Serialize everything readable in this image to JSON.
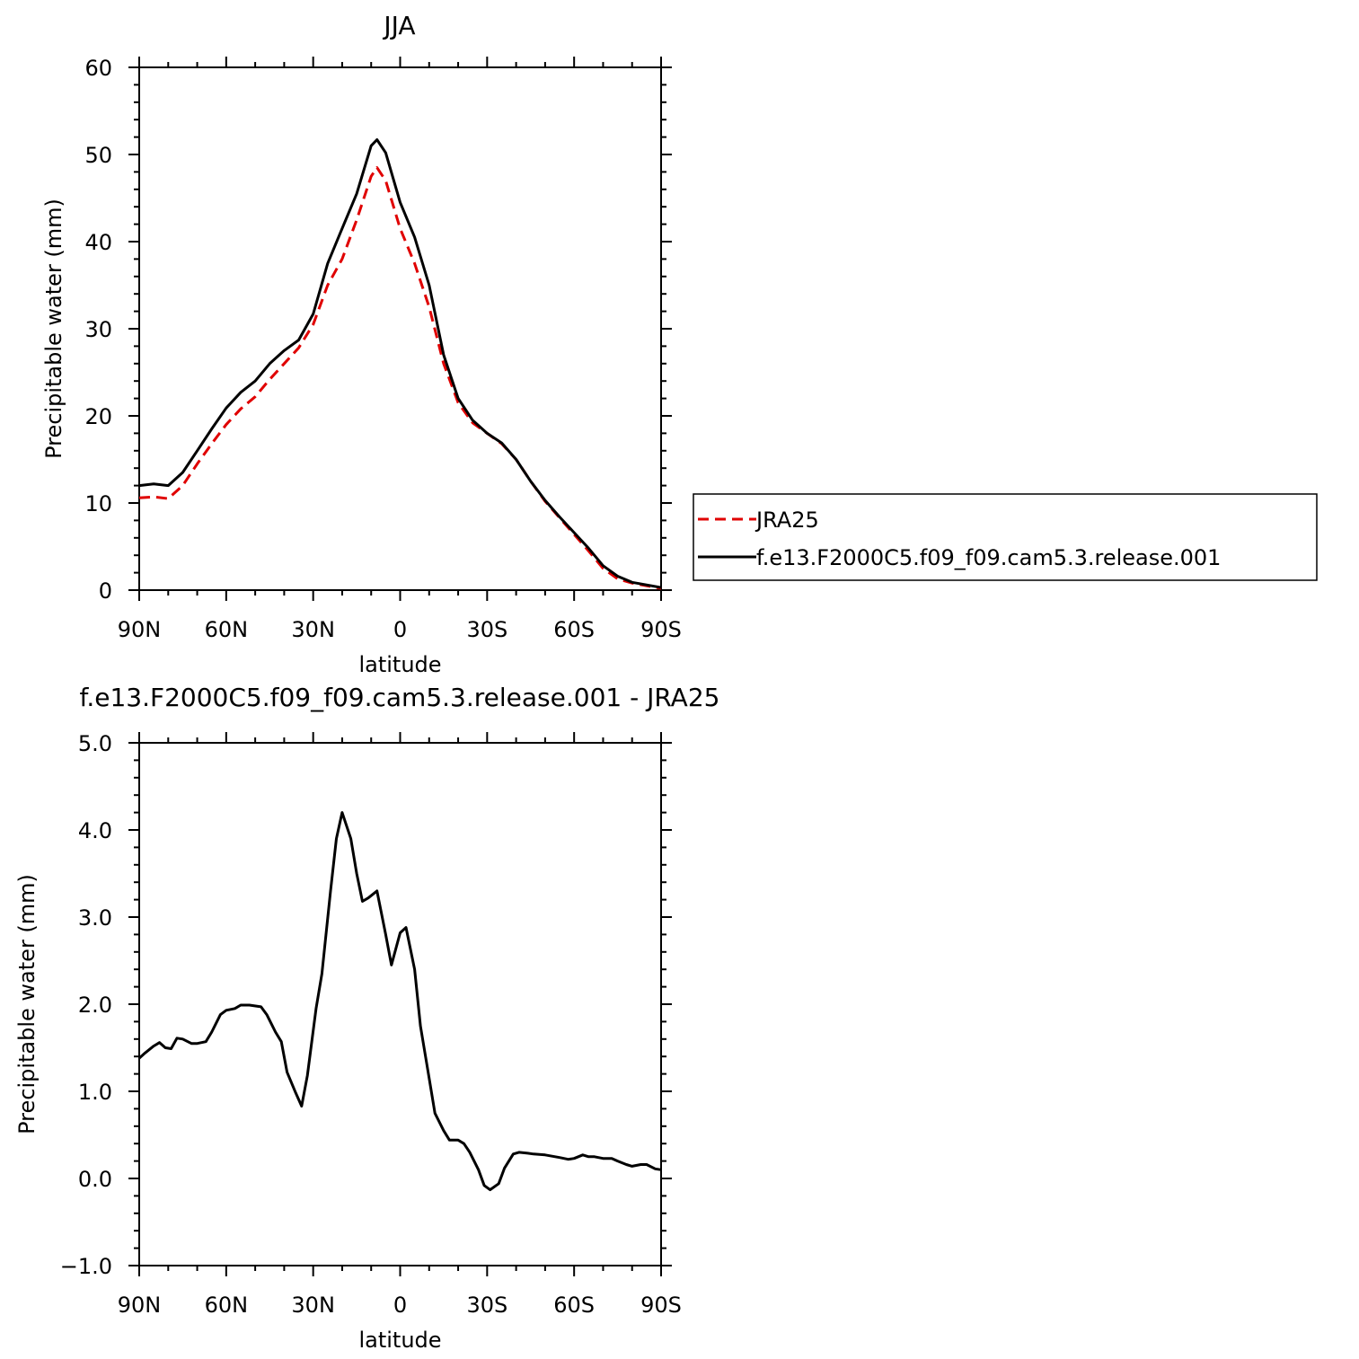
{
  "chart_data": [
    {
      "type": "line",
      "title": "JJA",
      "xlabel": "latitude",
      "ylabel": "Precipitable water (mm)",
      "xlim": [
        90,
        -90
      ],
      "ylim": [
        0,
        60
      ],
      "x_ticks": [
        90,
        60,
        30,
        0,
        -30,
        -60,
        -90
      ],
      "x_tick_labels": [
        "90N",
        "60N",
        "30N",
        "0",
        "30S",
        "60S",
        "90S"
      ],
      "y_ticks": [
        0,
        10,
        20,
        30,
        40,
        50,
        60
      ],
      "y_tick_labels": [
        "0",
        "10",
        "20",
        "30",
        "40",
        "50",
        "60"
      ],
      "legend_position": "right",
      "series": [
        {
          "name": "JRA25",
          "color": "#e00000",
          "dash": "dashed",
          "x": [
            90,
            85,
            80,
            75,
            70,
            65,
            60,
            55,
            50,
            45,
            40,
            35,
            30,
            25,
            20,
            15,
            10,
            8,
            5,
            0,
            -5,
            -10,
            -15,
            -20,
            -25,
            -30,
            -35,
            -40,
            -45,
            -50,
            -55,
            -60,
            -65,
            -70,
            -75,
            -80,
            -85,
            -90
          ],
          "values": [
            10.6,
            10.7,
            10.5,
            12.0,
            14.5,
            16.8,
            19.0,
            20.8,
            22.2,
            24.2,
            26.0,
            27.8,
            30.5,
            35.0,
            38.0,
            42.5,
            47.5,
            48.5,
            47.0,
            41.5,
            37.5,
            32.5,
            26.0,
            21.5,
            19.2,
            18.0,
            16.8,
            15.0,
            12.5,
            10.2,
            8.3,
            6.4,
            4.5,
            2.5,
            1.3,
            0.8,
            0.5,
            0.2
          ]
        },
        {
          "name": "f.e13.F2000C5.f09_f09.cam5.3.release.001",
          "color": "#000000",
          "dash": "solid",
          "x": [
            90,
            85,
            80,
            75,
            70,
            65,
            60,
            55,
            50,
            45,
            40,
            35,
            30,
            25,
            20,
            15,
            10,
            8,
            5,
            0,
            -5,
            -10,
            -15,
            -20,
            -25,
            -30,
            -35,
            -40,
            -45,
            -50,
            -55,
            -60,
            -65,
            -70,
            -75,
            -80,
            -85,
            -90
          ],
          "values": [
            12.0,
            12.2,
            12.0,
            13.5,
            16.0,
            18.5,
            20.9,
            22.7,
            24.0,
            26.0,
            27.5,
            28.7,
            31.7,
            37.5,
            41.5,
            45.5,
            51.0,
            51.7,
            50.2,
            44.5,
            40.5,
            35.0,
            27.0,
            22.0,
            19.5,
            18.0,
            16.9,
            15.0,
            12.5,
            10.3,
            8.4,
            6.6,
            4.8,
            2.8,
            1.6,
            0.9,
            0.6,
            0.3
          ]
        }
      ]
    },
    {
      "type": "line",
      "title": "f.e13.F2000C5.f09_f09.cam5.3.release.001 - JRA25",
      "xlabel": "latitude",
      "ylabel": "Precipitable water (mm)",
      "xlim": [
        90,
        -90
      ],
      "ylim": [
        -1.0,
        5.0
      ],
      "x_ticks": [
        90,
        60,
        30,
        0,
        -30,
        -60,
        -90
      ],
      "x_tick_labels": [
        "90N",
        "60N",
        "30N",
        "0",
        "30S",
        "60S",
        "90S"
      ],
      "y_ticks": [
        -1.0,
        0.0,
        1.0,
        2.0,
        3.0,
        4.0,
        5.0
      ],
      "y_tick_labels": [
        "−1.0",
        "0.0",
        "1.0",
        "2.0",
        "3.0",
        "4.0",
        "5.0"
      ],
      "series": [
        {
          "name": "",
          "color": "#000000",
          "dash": "solid",
          "x": [
            90,
            88,
            85,
            83,
            81,
            79,
            77,
            75,
            72,
            70,
            67,
            65,
            62,
            60,
            57,
            55,
            52,
            48,
            46,
            43,
            41,
            39,
            36,
            34,
            32,
            29,
            27,
            24,
            22,
            20,
            17,
            15,
            13,
            11,
            8,
            5,
            3,
            0,
            -2,
            -5,
            -7,
            -10,
            -12,
            -15,
            -17,
            -20,
            -22,
            -24,
            -27,
            -29,
            -31,
            -34,
            -36,
            -39,
            -41,
            -44,
            -46,
            -50,
            -55,
            -58,
            -60,
            -63,
            -65,
            -67,
            -70,
            -73,
            -75,
            -78,
            -80,
            -83,
            -85,
            -88,
            -90
          ],
          "values": [
            1.38,
            1.44,
            1.52,
            1.56,
            1.5,
            1.49,
            1.61,
            1.6,
            1.55,
            1.55,
            1.57,
            1.68,
            1.88,
            1.93,
            1.95,
            1.99,
            1.99,
            1.97,
            1.88,
            1.68,
            1.57,
            1.22,
            0.98,
            0.83,
            1.18,
            1.95,
            2.35,
            3.3,
            3.9,
            4.2,
            3.9,
            3.5,
            3.18,
            3.22,
            3.3,
            2.8,
            2.45,
            2.82,
            2.88,
            2.4,
            1.75,
            1.15,
            0.75,
            0.55,
            0.44,
            0.44,
            0.4,
            0.3,
            0.1,
            -0.08,
            -0.13,
            -0.06,
            0.12,
            0.28,
            0.3,
            0.29,
            0.28,
            0.27,
            0.24,
            0.22,
            0.23,
            0.27,
            0.25,
            0.25,
            0.23,
            0.23,
            0.2,
            0.16,
            0.14,
            0.16,
            0.16,
            0.11,
            0.1
          ]
        }
      ]
    }
  ]
}
